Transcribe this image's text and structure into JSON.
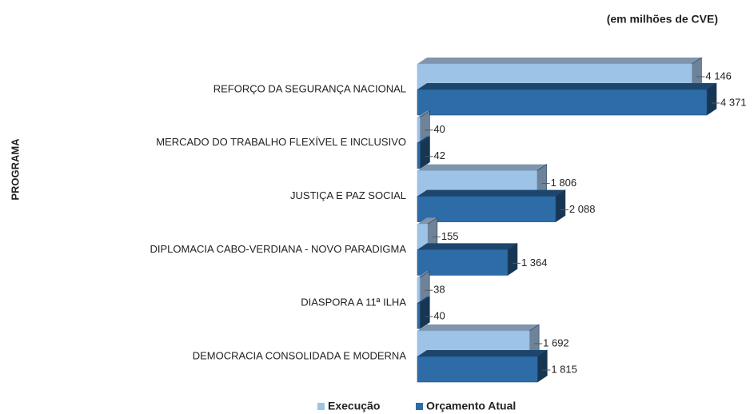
{
  "chart_data": {
    "type": "bar3d-horizontal",
    "subtitle": "(em milhões de CVE)",
    "y_label": "PROGRAMA",
    "categories": [
      "REFORÇO DA SEGURANÇA NACIONAL",
      "MERCADO DO TRABALHO FLEXÍVEL E INCLUSIVO",
      "JUSTIÇA E PAZ SOCIAL",
      "DIPLOMACIA CABO-VERDIANA - NOVO PARADIGMA",
      "DIASPORA A 11ª ILHA",
      "DEMOCRACIA CONSOLIDADA E MODERNA"
    ],
    "series": [
      {
        "name": "Execução",
        "color": "#9dc3e6",
        "values": [
          4146,
          40,
          1806,
          155,
          38,
          1692
        ],
        "value_labels": [
          "4 146",
          "40",
          "1 806",
          "155",
          "38",
          "1 692"
        ]
      },
      {
        "name": "Orçamento Atual",
        "color": "#2e6ca8",
        "values": [
          4371,
          42,
          2088,
          1364,
          40,
          1815
        ],
        "value_labels": [
          "4 371",
          "42",
          "2 088",
          "1 364",
          "40",
          "1 815"
        ]
      }
    ],
    "legend": "bottom"
  }
}
